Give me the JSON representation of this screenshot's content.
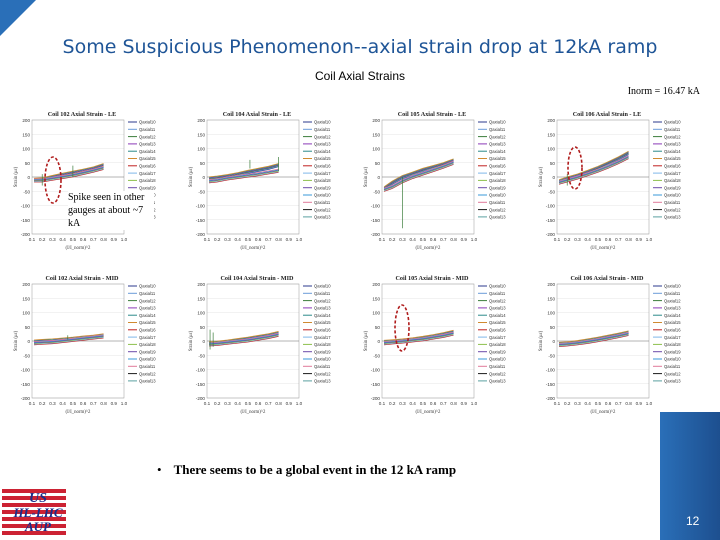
{
  "slide": {
    "title": "Some Suspicious Phenomenon--axial strain drop at 12kA ramp",
    "subtitle": "Coil Axial Strains",
    "inorm": "Inorm = 16.47 kA",
    "annotation": "Spike seen in other gauges at about ~7 kA",
    "bullet": "There seems to be a global event in the 12 kA ramp",
    "page_number": "12",
    "logo_lines": [
      "US",
      "HL-LHC",
      "AUP"
    ]
  },
  "colors": {
    "title": "#1f5597",
    "annotation_ellipse": "#b01c1c",
    "footer": "#2a6fb8"
  },
  "chart_data": [
    {
      "type": "line",
      "title": "Coil 102 Axial Strain - LE",
      "xlabel": "(I/I_norm)^2",
      "ylabel": "Strain (μɛ)",
      "xlim": [
        0.1,
        1.0
      ],
      "ylim": [
        -200,
        200
      ],
      "x_ticks": [
        "0.1",
        "0.2",
        "0.3",
        "0.4",
        "0.5",
        "0.6",
        "0.7",
        "0.8",
        "0.9",
        "1.0"
      ],
      "y_ticks": [
        "200",
        "150",
        "100",
        "50",
        "0",
        "-50",
        "-100",
        "-150",
        "-200"
      ],
      "legend": [
        "Qaxial10",
        "Qaxial11",
        "Qaxial12",
        "Qaxial13",
        "Qaxial14",
        "Qaxial15",
        "Qaxial16",
        "Qaxial17",
        "Qaxial18",
        "Qaxial19",
        "Qaxial10",
        "Qaxial11",
        "Qaxial12",
        "Qaxial13"
      ],
      "series": [
        {
          "x": [
            0.12,
            0.2,
            0.3,
            0.4,
            0.5,
            0.6,
            0.7,
            0.8
          ],
          "y": [
            -10,
            -8,
            0,
            8,
            15,
            22,
            30,
            42
          ]
        },
        {
          "x": [
            0.12,
            0.2,
            0.3,
            0.4,
            0.5,
            0.6,
            0.7,
            0.8
          ],
          "y": [
            -12,
            -12,
            -6,
            0,
            6,
            14,
            22,
            32
          ]
        }
      ],
      "spikes": [
        {
          "x": 0.2,
          "y1": -30,
          "y2": 10
        },
        {
          "x": 0.5,
          "y1": 0,
          "y2": 40
        }
      ]
    },
    {
      "type": "line",
      "title": "Coil 104 Axial Strain - LE",
      "xlabel": "(I/I_norm)^2",
      "ylabel": "Strain (μɛ)",
      "xlim": [
        0.1,
        1.0
      ],
      "ylim": [
        -200,
        200
      ],
      "x_ticks": [
        "0.1",
        "0.2",
        "0.3",
        "0.4",
        "0.5",
        "0.6",
        "0.7",
        "0.8",
        "0.9",
        "1.0"
      ],
      "y_ticks": [
        "200",
        "150",
        "100",
        "50",
        "0",
        "-50",
        "-100",
        "-150",
        "-200"
      ],
      "legend": [
        "Qaxial10",
        "Qaxial11",
        "Qaxial12",
        "Qaxial13",
        "Qaxial14",
        "Qaxial15",
        "Qaxial16",
        "Qaxial17",
        "Qaxial18",
        "Qaxial19",
        "Qaxial10",
        "Qaxial11",
        "Qaxial12",
        "Qaxial13"
      ],
      "series": [
        {
          "x": [
            0.12,
            0.2,
            0.3,
            0.4,
            0.5,
            0.6,
            0.7,
            0.8
          ],
          "y": [
            -5,
            -2,
            3,
            10,
            18,
            25,
            32,
            42
          ]
        },
        {
          "x": [
            0.12,
            0.2,
            0.3,
            0.4,
            0.5,
            0.6,
            0.7,
            0.8
          ],
          "y": [
            -15,
            -12,
            -5,
            0,
            5,
            10,
            16,
            22
          ]
        }
      ],
      "spikes": [
        {
          "x": 0.52,
          "y1": 30,
          "y2": 60
        },
        {
          "x": 0.8,
          "y1": 20,
          "y2": 70
        }
      ]
    },
    {
      "type": "line",
      "title": "Coil 105 Axial Strain - LE",
      "xlabel": "(I/I_norm)^2",
      "ylabel": "Strain (μɛ)",
      "xlim": [
        0.1,
        1.0
      ],
      "ylim": [
        -200,
        200
      ],
      "x_ticks": [
        "0.1",
        "0.2",
        "0.3",
        "0.4",
        "0.5",
        "0.6",
        "0.7",
        "0.8",
        "0.9",
        "1.0"
      ],
      "y_ticks": [
        "200",
        "150",
        "100",
        "50",
        "0",
        "-50",
        "-100",
        "-150",
        "-200"
      ],
      "legend": [
        "Qaxial10",
        "Qaxial11",
        "Qaxial12",
        "Qaxial13",
        "Qaxial14",
        "Qaxial15",
        "Qaxial16",
        "Qaxial17",
        "Qaxial18",
        "Qaxial19",
        "Qaxial10",
        "Qaxial11",
        "Qaxial12",
        "Qaxial13"
      ],
      "series": [
        {
          "x": [
            0.12,
            0.2,
            0.3,
            0.4,
            0.5,
            0.6,
            0.7,
            0.8
          ],
          "y": [
            -40,
            -20,
            0,
            12,
            25,
            35,
            45,
            58
          ]
        },
        {
          "x": [
            0.12,
            0.2,
            0.3,
            0.4,
            0.5,
            0.6,
            0.7,
            0.8
          ],
          "y": [
            -45,
            -35,
            -15,
            0,
            12,
            24,
            36,
            50
          ]
        }
      ],
      "spikes": [
        {
          "x": 0.3,
          "y1": -180,
          "y2": 0
        }
      ]
    },
    {
      "type": "line",
      "title": "Coil 106 Axial Strain - LE",
      "xlabel": "(I/I_norm)^2",
      "ylabel": "Strain (μɛ)",
      "xlim": [
        0.1,
        1.0
      ],
      "ylim": [
        -200,
        200
      ],
      "x_ticks": [
        "0.1",
        "0.2",
        "0.3",
        "0.4",
        "0.5",
        "0.6",
        "0.7",
        "0.8",
        "0.9",
        "1.0"
      ],
      "y_ticks": [
        "200",
        "150",
        "100",
        "50",
        "0",
        "-50",
        "-100",
        "-150",
        "-200"
      ],
      "legend": [
        "Qaxial10",
        "Qaxial11",
        "Qaxial12",
        "Qaxial13",
        "Qaxial14",
        "Qaxial15",
        "Qaxial16",
        "Qaxial17",
        "Qaxial18",
        "Qaxial19",
        "Qaxial10",
        "Qaxial11",
        "Qaxial12",
        "Qaxial13"
      ],
      "series": [
        {
          "x": [
            0.12,
            0.2,
            0.3,
            0.4,
            0.5,
            0.6,
            0.7,
            0.8
          ],
          "y": [
            -15,
            -5,
            5,
            18,
            32,
            48,
            65,
            85
          ]
        },
        {
          "x": [
            0.12,
            0.2,
            0.3,
            0.4,
            0.5,
            0.6,
            0.7,
            0.8
          ],
          "y": [
            -20,
            -12,
            -2,
            10,
            22,
            36,
            52,
            70
          ]
        }
      ],
      "spikes": [
        {
          "x": 0.2,
          "y1": -30,
          "y2": 10
        }
      ]
    },
    {
      "type": "line",
      "title": "Coil 102 Axial Strain - MID",
      "xlabel": "(I/I_norm)^2",
      "ylabel": "Strain (μɛ)",
      "xlim": [
        0.1,
        1.0
      ],
      "ylim": [
        -200,
        200
      ],
      "x_ticks": [
        "0.1",
        "0.2",
        "0.3",
        "0.4",
        "0.5",
        "0.6",
        "0.7",
        "0.8",
        "0.9",
        "1.0"
      ],
      "y_ticks": [
        "200",
        "150",
        "100",
        "50",
        "0",
        "-50",
        "-100",
        "-150",
        "-200"
      ],
      "legend": [
        "Qaxial10",
        "Qaxial11",
        "Qaxial12",
        "Qaxial13",
        "Qaxial14",
        "Qaxial15",
        "Qaxial16",
        "Qaxial17",
        "Qaxial18",
        "Qaxial19",
        "Qaxial10",
        "Qaxial11",
        "Qaxial12",
        "Qaxial13"
      ],
      "series": [
        {
          "x": [
            0.12,
            0.2,
            0.3,
            0.4,
            0.5,
            0.6,
            0.7,
            0.8
          ],
          "y": [
            -2,
            0,
            2,
            5,
            8,
            12,
            15,
            20
          ]
        },
        {
          "x": [
            0.12,
            0.2,
            0.3,
            0.4,
            0.5,
            0.6,
            0.7,
            0.8
          ],
          "y": [
            -8,
            -6,
            -4,
            0,
            4,
            8,
            12,
            16
          ]
        }
      ],
      "spikes": [
        {
          "x": 0.45,
          "y1": 5,
          "y2": 20
        }
      ]
    },
    {
      "type": "line",
      "title": "Coil 104 Axial Strain - MID",
      "xlabel": "(I/I_norm)^2",
      "ylabel": "Strain (μɛ)",
      "xlim": [
        0.1,
        1.0
      ],
      "ylim": [
        -200,
        200
      ],
      "x_ticks": [
        "0.1",
        "0.2",
        "0.3",
        "0.4",
        "0.5",
        "0.6",
        "0.7",
        "0.8",
        "0.9",
        "1.0"
      ],
      "y_ticks": [
        "200",
        "150",
        "100",
        "50",
        "0",
        "-50",
        "-100",
        "-150",
        "-200"
      ],
      "legend": [
        "Qaxial10",
        "Qaxial11",
        "Qaxial12",
        "Qaxial13",
        "Qaxial14",
        "Qaxial15",
        "Qaxial16",
        "Qaxial17",
        "Qaxial18",
        "Qaxial19",
        "Qaxial10",
        "Qaxial11",
        "Qaxial12",
        "Qaxial13"
      ],
      "series": [
        {
          "x": [
            0.12,
            0.2,
            0.3,
            0.4,
            0.5,
            0.6,
            0.7,
            0.8
          ],
          "y": [
            -8,
            -6,
            -2,
            3,
            8,
            14,
            20,
            28
          ]
        },
        {
          "x": [
            0.12,
            0.2,
            0.3,
            0.4,
            0.5,
            0.6,
            0.7,
            0.8
          ],
          "y": [
            -12,
            -10,
            -6,
            -2,
            2,
            8,
            14,
            22
          ]
        }
      ],
      "spikes": [
        {
          "x": 0.13,
          "y1": -30,
          "y2": 40
        },
        {
          "x": 0.16,
          "y1": -20,
          "y2": 30
        }
      ]
    },
    {
      "type": "line",
      "title": "Coil 105 Axial Strain - MID",
      "xlabel": "(I/I_norm)^2",
      "ylabel": "Strain (μɛ)",
      "xlim": [
        0.1,
        1.0
      ],
      "ylim": [
        -200,
        200
      ],
      "x_ticks": [
        "0.1",
        "0.2",
        "0.3",
        "0.4",
        "0.5",
        "0.6",
        "0.7",
        "0.8",
        "0.9",
        "1.0"
      ],
      "y_ticks": [
        "200",
        "150",
        "100",
        "50",
        "0",
        "-50",
        "-100",
        "-150",
        "-200"
      ],
      "legend": [
        "Qaxial10",
        "Qaxial11",
        "Qaxial12",
        "Qaxial13",
        "Qaxial14",
        "Qaxial15",
        "Qaxial16",
        "Qaxial17",
        "Qaxial18",
        "Qaxial19",
        "Qaxial10",
        "Qaxial11",
        "Qaxial12",
        "Qaxial13"
      ],
      "series": [
        {
          "x": [
            0.12,
            0.2,
            0.3,
            0.4,
            0.5,
            0.6,
            0.7,
            0.8
          ],
          "y": [
            -3,
            -1,
            2,
            6,
            11,
            17,
            24,
            32
          ]
        },
        {
          "x": [
            0.12,
            0.2,
            0.3,
            0.4,
            0.5,
            0.6,
            0.7,
            0.8
          ],
          "y": [
            -8,
            -5,
            -2,
            2,
            6,
            12,
            18,
            26
          ]
        }
      ],
      "spikes": []
    },
    {
      "type": "line",
      "title": "Coil 106 Axial Strain - MID",
      "xlabel": "(I/I_norm)^2",
      "ylabel": "Strain (μɛ)",
      "xlim": [
        0.1,
        1.0
      ],
      "ylim": [
        -200,
        200
      ],
      "x_ticks": [
        "0.1",
        "0.2",
        "0.3",
        "0.4",
        "0.5",
        "0.6",
        "0.7",
        "0.8",
        "0.9",
        "1.0"
      ],
      "y_ticks": [
        "200",
        "150",
        "100",
        "50",
        "0",
        "-50",
        "-100",
        "-150",
        "-200"
      ],
      "legend": [
        "Qaxial10",
        "Qaxial11",
        "Qaxial12",
        "Qaxial13",
        "Qaxial14",
        "Qaxial15",
        "Qaxial16",
        "Qaxial17",
        "Qaxial18",
        "Qaxial19",
        "Qaxial10",
        "Qaxial11",
        "Qaxial12",
        "Qaxial13"
      ],
      "series": [
        {
          "x": [
            0.12,
            0.2,
            0.3,
            0.4,
            0.5,
            0.6,
            0.7,
            0.8
          ],
          "y": [
            -10,
            -8,
            -4,
            2,
            8,
            15,
            22,
            30
          ]
        },
        {
          "x": [
            0.12,
            0.2,
            0.3,
            0.4,
            0.5,
            0.6,
            0.7,
            0.8
          ],
          "y": [
            -14,
            -12,
            -8,
            -3,
            3,
            10,
            17,
            25
          ]
        }
      ],
      "spikes": []
    }
  ]
}
